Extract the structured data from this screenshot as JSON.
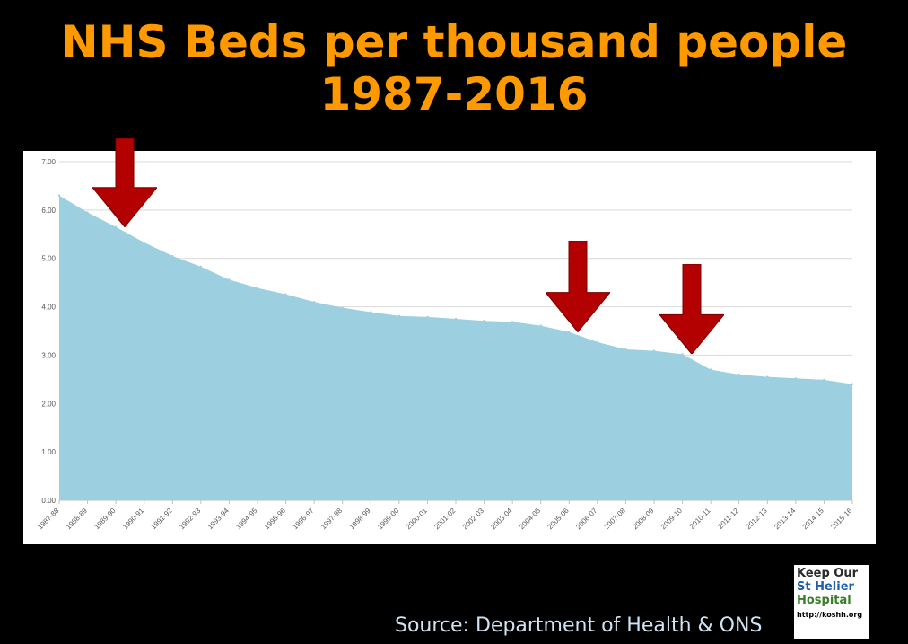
{
  "title_line1": "NHS Beds per thousand people",
  "title_line2": "1987-2016",
  "source": "Source: Department of Health & ONS",
  "logo": {
    "line1": "Keep Our",
    "line2": "St Helier",
    "line3": "Hospital",
    "url": "http://koshh.org"
  },
  "colors": {
    "title": "#ff9900",
    "area": "#9ccfe0",
    "arrow": "#b30000",
    "background": "#000000"
  },
  "chart_data": {
    "type": "area",
    "categories": [
      "1987-88",
      "1988-89",
      "1989-90",
      "1990-91",
      "1991-92",
      "1992-93",
      "1993-94",
      "1994-95",
      "1995-96",
      "1996-97",
      "1997-98",
      "1998-99",
      "1999-00",
      "2000-01",
      "2001-02",
      "2002-03",
      "2003-04",
      "2004-05",
      "2005-06",
      "2006-07",
      "2007-08",
      "2008-09",
      "2009-10",
      "2010-11",
      "2011-12",
      "2012-13",
      "2013-14",
      "2014-15",
      "2015-16"
    ],
    "values": [
      6.3,
      5.95,
      5.65,
      5.33,
      5.05,
      4.83,
      4.56,
      4.39,
      4.26,
      4.1,
      3.98,
      3.89,
      3.81,
      3.79,
      3.75,
      3.71,
      3.69,
      3.61,
      3.48,
      3.27,
      3.12,
      3.09,
      3.02,
      2.7,
      2.6,
      2.55,
      2.52,
      2.49,
      2.4
    ],
    "y_ticks": [
      "0.00",
      "1.00",
      "2.00",
      "3.00",
      "4.00",
      "5.00",
      "6.00",
      "7.00"
    ],
    "ylim": [
      0,
      7
    ],
    "grid": true,
    "legend": "none",
    "annotations": [
      {
        "type": "arrow",
        "x": "1989-90",
        "y": 5.65
      },
      {
        "type": "arrow",
        "x": "2005-06",
        "y": 3.48
      },
      {
        "type": "arrow",
        "x": "2009-10",
        "y": 3.02
      }
    ]
  }
}
